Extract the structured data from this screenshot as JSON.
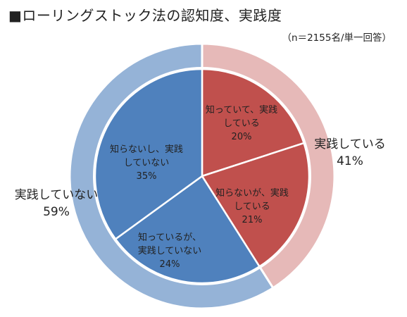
{
  "chart_data": {
    "type": "pie",
    "title": "■ローリングストック法の認知度、実践度",
    "note": "（n＝2155名/単一回答）",
    "inner": [
      {
        "label_lines": [
          "知っていて、実践",
          "している"
        ],
        "value": 20,
        "value_label": "20%",
        "color": "#c0504d"
      },
      {
        "label_lines": [
          "知らないが、実践",
          "している"
        ],
        "value": 21,
        "value_label": "21%",
        "color": "#c0504d"
      },
      {
        "label_lines": [
          "知っているが、",
          "実践していない"
        ],
        "value": 24,
        "value_label": "24%",
        "color": "#4f81bd"
      },
      {
        "label_lines": [
          "知らないし、実践",
          "していない"
        ],
        "value": 35,
        "value_label": "35%",
        "color": "#4f81bd"
      }
    ],
    "outer": [
      {
        "label": "実践している",
        "value": 41,
        "value_label": "41%",
        "color": "#e6b9b8"
      },
      {
        "label": "実践していない",
        "value": 59,
        "value_label": "59%",
        "color": "#95b3d7"
      }
    ]
  }
}
